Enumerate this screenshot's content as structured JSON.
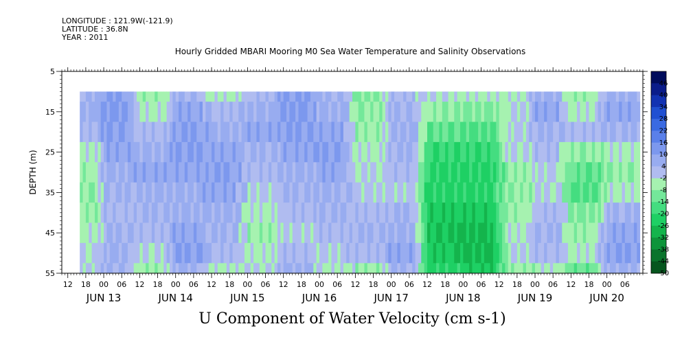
{
  "header": {
    "longitude": "LONGITUDE : 121.9W(-121.9)",
    "latitude": "LATITUDE : 36.8N",
    "year": "YEAR : 2011"
  },
  "chart_data": {
    "type": "heatmap",
    "title": "Hourly Gridded MBARI Mooring M0 Sea Water Temperature and Salinity Observations",
    "xlabel": "U Component of Water Velocity (cm s-1)",
    "ylabel": "DEPTH (m)",
    "ylim": [
      5,
      55
    ],
    "y_inverted": true,
    "y_ticks": [
      5,
      15,
      25,
      35,
      45,
      55
    ],
    "x_start": "2011-06-12 10:00",
    "x_end": "2011-06-20 12:00",
    "x_hour_ticks": [
      {
        "t": "2011-06-12 12:00",
        "label": "12"
      },
      {
        "t": "2011-06-12 18:00",
        "label": "18"
      },
      {
        "t": "2011-06-13 00:00",
        "label": "00"
      },
      {
        "t": "2011-06-13 06:00",
        "label": "06"
      },
      {
        "t": "2011-06-13 12:00",
        "label": "12"
      },
      {
        "t": "2011-06-13 18:00",
        "label": "18"
      },
      {
        "t": "2011-06-14 00:00",
        "label": "00"
      },
      {
        "t": "2011-06-14 06:00",
        "label": "06"
      },
      {
        "t": "2011-06-14 12:00",
        "label": "12"
      },
      {
        "t": "2011-06-14 18:00",
        "label": "18"
      },
      {
        "t": "2011-06-15 00:00",
        "label": "00"
      },
      {
        "t": "2011-06-15 06:00",
        "label": "06"
      },
      {
        "t": "2011-06-15 12:00",
        "label": "12"
      },
      {
        "t": "2011-06-15 18:00",
        "label": "18"
      },
      {
        "t": "2011-06-16 00:00",
        "label": "00"
      },
      {
        "t": "2011-06-16 06:00",
        "label": "06"
      },
      {
        "t": "2011-06-16 12:00",
        "label": "12"
      },
      {
        "t": "2011-06-16 18:00",
        "label": "18"
      },
      {
        "t": "2011-06-17 00:00",
        "label": "00"
      },
      {
        "t": "2011-06-17 06:00",
        "label": "06"
      },
      {
        "t": "2011-06-17 12:00",
        "label": "12"
      },
      {
        "t": "2011-06-17 18:00",
        "label": "18"
      },
      {
        "t": "2011-06-18 00:00",
        "label": "00"
      },
      {
        "t": "2011-06-18 06:00",
        "label": "06"
      },
      {
        "t": "2011-06-18 12:00",
        "label": "12"
      },
      {
        "t": "2011-06-18 18:00",
        "label": "18"
      },
      {
        "t": "2011-06-19 00:00",
        "label": "00"
      },
      {
        "t": "2011-06-19 06:00",
        "label": "06"
      },
      {
        "t": "2011-06-19 12:00",
        "label": "12"
      },
      {
        "t": "2011-06-19 18:00",
        "label": "18"
      },
      {
        "t": "2011-06-20 00:00",
        "label": "00"
      },
      {
        "t": "2011-06-20 06:00",
        "label": "06"
      }
    ],
    "x_day_labels": [
      {
        "t": "2011-06-13 00:00",
        "label": "JUN 13"
      },
      {
        "t": "2011-06-14 00:00",
        "label": "JUN 14"
      },
      {
        "t": "2011-06-15 00:00",
        "label": "JUN 15"
      },
      {
        "t": "2011-06-16 00:00",
        "label": "JUN 16"
      },
      {
        "t": "2011-06-17 00:00",
        "label": "JUN 17"
      },
      {
        "t": "2011-06-18 00:00",
        "label": "JUN 18"
      },
      {
        "t": "2011-06-19 00:00",
        "label": "JUN 19"
      },
      {
        "t": "2011-06-20 00:00",
        "label": "JUN 20"
      }
    ],
    "data_extent": {
      "t_start": "2011-06-12 16:00",
      "t_end": "2011-06-20 11:00",
      "depth_top": 10,
      "depth_bottom": 55
    },
    "levels": [
      -50,
      -44,
      -38,
      -32,
      -26,
      -20,
      -14,
      -8,
      -2,
      4,
      10,
      16,
      22,
      28,
      34,
      40,
      46
    ],
    "colorbar_labels": [
      "46",
      "40",
      "34",
      "28",
      "22",
      "16",
      "10",
      "4",
      "-2",
      "-8",
      "-14",
      "-20",
      "-26",
      "-32",
      "-38",
      "-44",
      "-50"
    ],
    "colorbar_colors": [
      "#000c5c",
      "#0a1c8a",
      "#1232b2",
      "#2050d2",
      "#3a6ae2",
      "#5a80ea",
      "#7c98ee",
      "#98acf0",
      "#b0bcf0",
      "#a6f2b0",
      "#74e89a",
      "#44dd80",
      "#1ed064",
      "#14b44c",
      "#0e943a",
      "#0a742c",
      "#06561e"
    ],
    "time_series_note": "u values sampled hourly per depth row",
    "depth_rows": [
      10,
      15,
      20,
      25,
      30,
      35,
      40,
      45,
      50,
      55
    ],
    "u_profile_by_period": [
      {
        "from": "2011-06-12 16:00",
        "to": "2011-06-13 00:00",
        "values": [
          4,
          6,
          2,
          -4,
          -6,
          -8,
          -6,
          -4,
          -2,
          0
        ]
      },
      {
        "from": "2011-06-13 00:00",
        "to": "2011-06-13 12:00",
        "values": [
          10,
          12,
          10,
          8,
          6,
          4,
          2,
          4,
          6,
          4
        ]
      },
      {
        "from": "2011-06-13 12:00",
        "to": "2011-06-14 00:00",
        "values": [
          -6,
          -4,
          2,
          6,
          8,
          6,
          4,
          2,
          -2,
          -6
        ]
      },
      {
        "from": "2011-06-14 00:00",
        "to": "2011-06-14 12:00",
        "values": [
          4,
          8,
          10,
          10,
          8,
          6,
          6,
          8,
          10,
          6
        ]
      },
      {
        "from": "2011-06-14 12:00",
        "to": "2011-06-15 00:00",
        "values": [
          -4,
          2,
          6,
          8,
          10,
          8,
          6,
          4,
          2,
          -4
        ]
      },
      {
        "from": "2011-06-15 00:00",
        "to": "2011-06-15 12:00",
        "values": [
          2,
          6,
          8,
          4,
          2,
          0,
          -4,
          -6,
          -4,
          -2
        ]
      },
      {
        "from": "2011-06-15 12:00",
        "to": "2011-06-16 00:00",
        "values": [
          10,
          12,
          10,
          8,
          6,
          4,
          2,
          0,
          2,
          6
        ]
      },
      {
        "from": "2011-06-16 00:00",
        "to": "2011-06-16 12:00",
        "values": [
          4,
          6,
          8,
          10,
          8,
          6,
          4,
          2,
          0,
          -4
        ]
      },
      {
        "from": "2011-06-16 12:00",
        "to": "2011-06-17 00:00",
        "values": [
          -10,
          -8,
          -6,
          -4,
          -2,
          0,
          2,
          4,
          2,
          -6
        ]
      },
      {
        "from": "2011-06-17 00:00",
        "to": "2011-06-17 12:00",
        "values": [
          2,
          4,
          6,
          4,
          2,
          0,
          4,
          6,
          8,
          4
        ]
      },
      {
        "from": "2011-06-17 12:00",
        "to": "2011-06-18 00:00",
        "values": [
          -2,
          -8,
          -14,
          -20,
          -22,
          -22,
          -24,
          -26,
          -24,
          -22
        ]
      },
      {
        "from": "2011-06-18 00:00",
        "to": "2011-06-18 15:00",
        "values": [
          -4,
          -10,
          -16,
          -20,
          -22,
          -22,
          -24,
          -28,
          -28,
          -24
        ]
      },
      {
        "from": "2011-06-18 15:00",
        "to": "2011-06-19 00:00",
        "values": [
          -4,
          -2,
          0,
          -2,
          -6,
          -8,
          -6,
          -4,
          -2,
          -6
        ]
      },
      {
        "from": "2011-06-19 00:00",
        "to": "2011-06-19 12:00",
        "values": [
          6,
          8,
          4,
          2,
          0,
          -2,
          2,
          4,
          2,
          -4
        ]
      },
      {
        "from": "2011-06-19 12:00",
        "to": "2011-06-20 00:00",
        "values": [
          -6,
          -4,
          2,
          -8,
          -14,
          -16,
          -10,
          -6,
          -4,
          -12
        ]
      },
      {
        "from": "2011-06-20 00:00",
        "to": "2011-06-20 11:00",
        "values": [
          6,
          8,
          4,
          -4,
          -8,
          -4,
          4,
          8,
          10,
          6
        ]
      }
    ]
  }
}
